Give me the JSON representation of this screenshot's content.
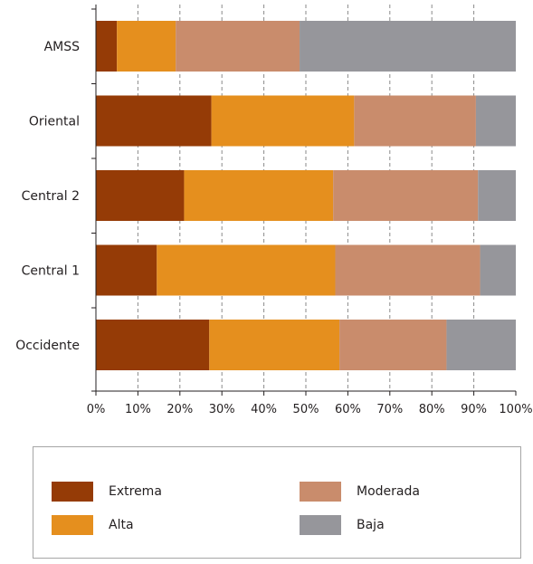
{
  "chart_data": {
    "type": "bar",
    "orientation": "horizontal",
    "stacked": true,
    "percent": true,
    "categories": [
      "AMSS",
      "Oriental",
      "Central 2",
      "Central 1",
      "Occidente"
    ],
    "series": [
      {
        "name": "Extrema",
        "color": "#953b06",
        "values": [
          5,
          27.5,
          21,
          14.5,
          27
        ]
      },
      {
        "name": "Alta",
        "color": "#e58f1e",
        "values": [
          14,
          34,
          35.5,
          42.5,
          31
        ]
      },
      {
        "name": "Moderada",
        "color": "#c98c6c",
        "values": [
          29.5,
          29,
          34.5,
          34.5,
          25.5
        ]
      },
      {
        "name": "Baja",
        "color": "#96969b",
        "values": [
          51.5,
          9.5,
          9,
          8.5,
          16.5
        ]
      }
    ],
    "xlim": [
      0,
      100
    ],
    "x_ticks": [
      "0%",
      "10%",
      "20%",
      "30%",
      "40%",
      "50%",
      "60%",
      "70%",
      "80%",
      "90%",
      "100%"
    ],
    "grid": "vertical-dashed",
    "legend_position": "bottom"
  },
  "legend": {
    "items": [
      {
        "label": "Extrema",
        "color": "#953b06"
      },
      {
        "label": "Moderada",
        "color": "#c98c6c"
      },
      {
        "label": "Alta",
        "color": "#e58f1e"
      },
      {
        "label": "Baja",
        "color": "#96969b"
      }
    ]
  }
}
